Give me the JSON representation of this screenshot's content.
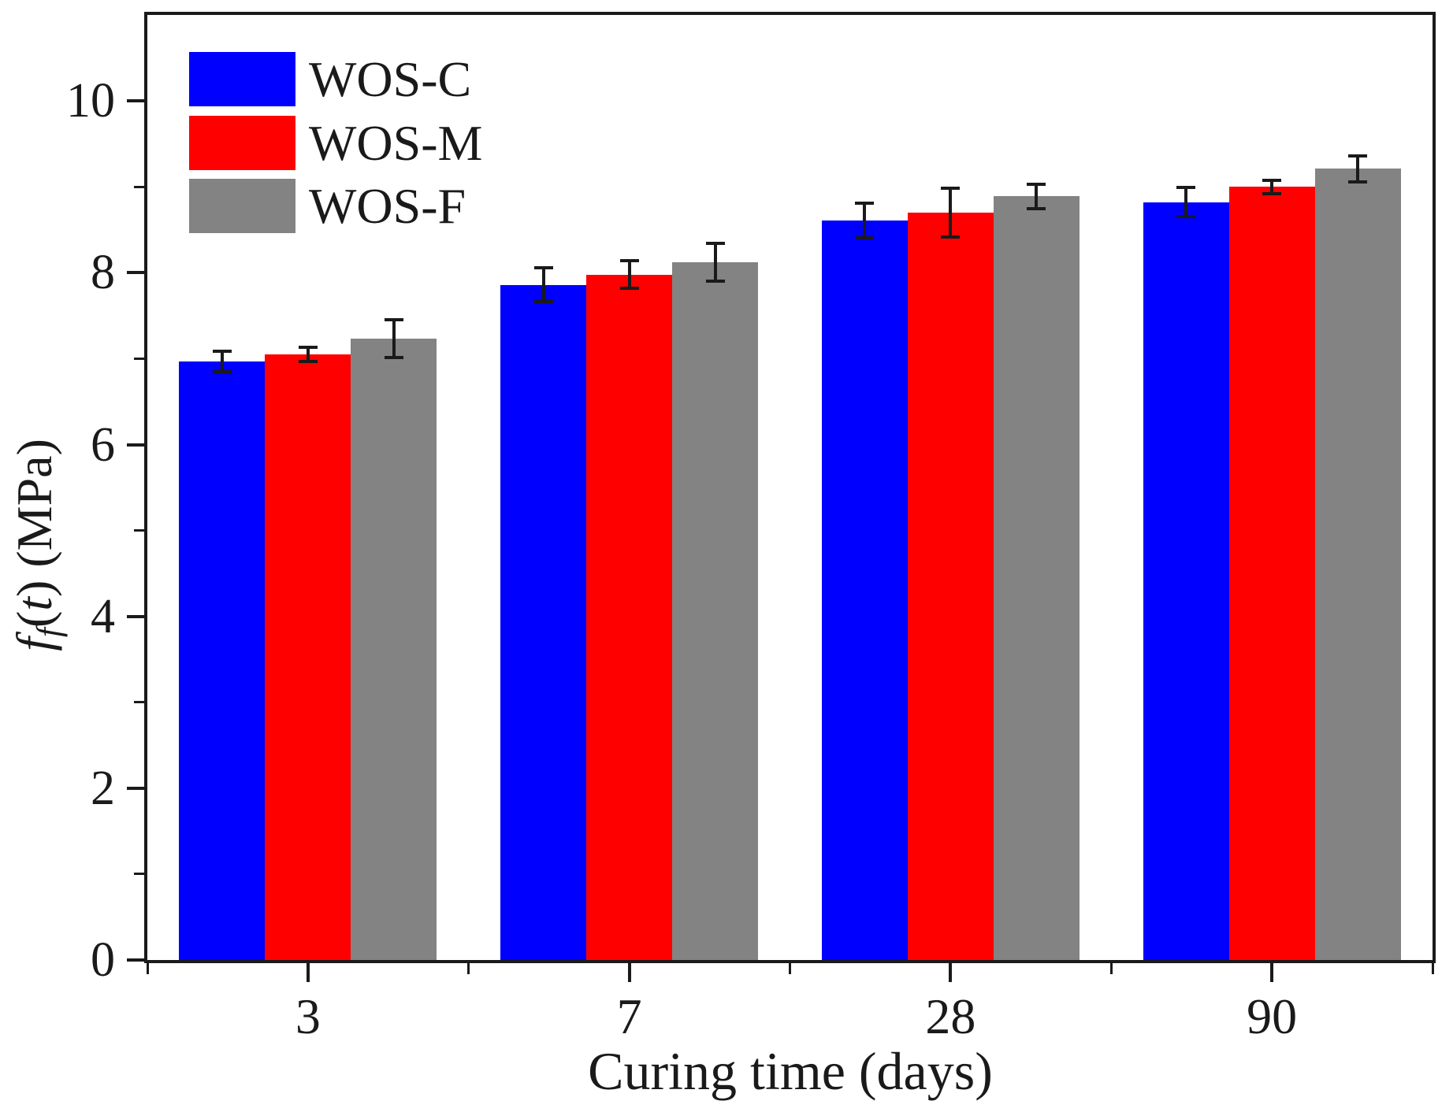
{
  "chart_data": {
    "type": "bar",
    "title": "",
    "xlabel": "Curing time (days)",
    "ylabel": "ff(t) (MPa)",
    "ylabel_segments": [
      {
        "text": "f",
        "style": "italic"
      },
      {
        "text": "f",
        "style": "subscript"
      },
      {
        "text": "(",
        "style": "normal"
      },
      {
        "text": "t",
        "style": "italic"
      },
      {
        "text": ")",
        "style": "normal"
      },
      {
        "text": " (MPa)",
        "style": "normal"
      }
    ],
    "categories": [
      "3",
      "7",
      "28",
      "90"
    ],
    "series": [
      {
        "name": "WOS-C",
        "color": "#0000ff",
        "values": [
          6.97,
          7.86,
          8.61,
          8.82
        ],
        "errors": [
          0.12,
          0.2,
          0.2,
          0.17
        ]
      },
      {
        "name": "WOS-M",
        "color": "#ff0000",
        "values": [
          7.05,
          7.98,
          8.7,
          9.0
        ],
        "errors": [
          0.08,
          0.16,
          0.28,
          0.08
        ]
      },
      {
        "name": "WOS-F",
        "color": "#838383",
        "values": [
          7.23,
          8.12,
          8.89,
          9.21
        ],
        "errors": [
          0.22,
          0.22,
          0.14,
          0.15
        ]
      }
    ],
    "ylim": [
      0,
      11
    ],
    "yticks_major": [
      0,
      2,
      4,
      6,
      8,
      10
    ],
    "yticks_minor": [
      1,
      3,
      5,
      7,
      9
    ],
    "grid": false,
    "legend_position": "top-left",
    "axis_color": "#1a1a1a",
    "errorbar_color": "#1a1a1a",
    "background_color": "#ffffff"
  }
}
